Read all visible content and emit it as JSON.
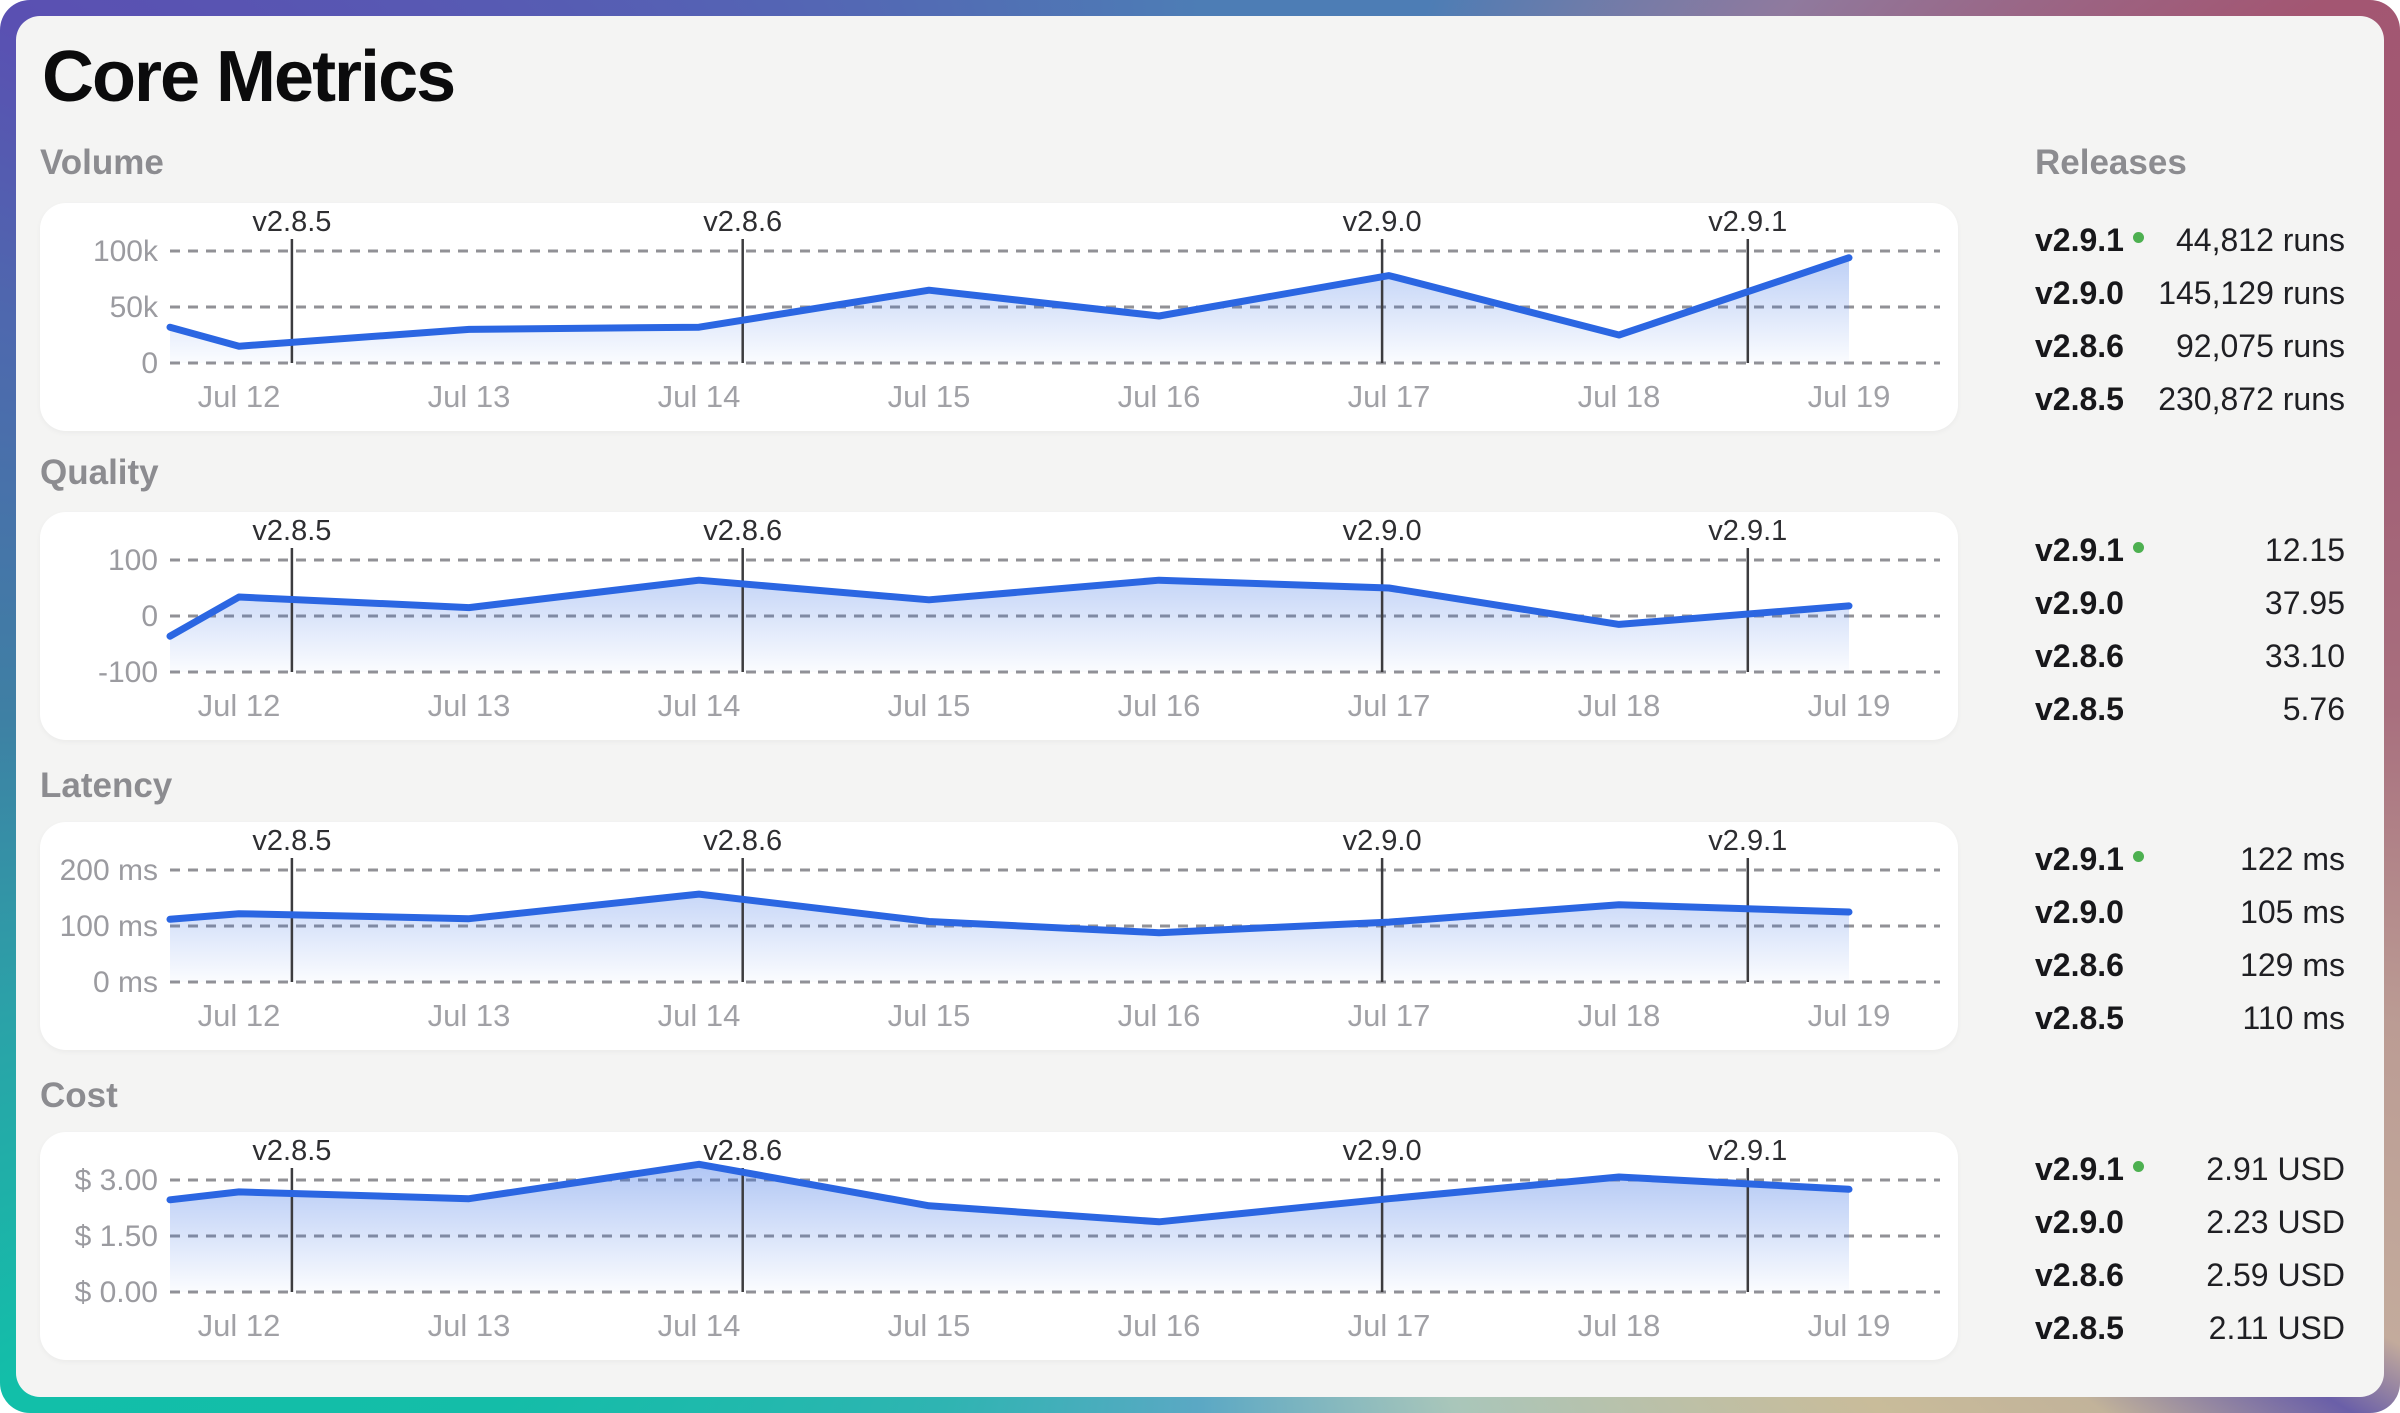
{
  "title": "Core Metrics",
  "releases_panel": {
    "header": "Releases"
  },
  "colors": {
    "line_blue": "#2b66e2",
    "active_dot_green": "#4db050",
    "card_bg": "#f4f4f3",
    "panel_bg": "#ffffff",
    "frame_gradient": [
      "#5a50b2",
      "#4d7db5",
      "#a35672",
      "#bb9c94",
      "#6a5fa8",
      "#c9bc9a",
      "#5ba8c4",
      "#14bda8",
      "#3f7fa4"
    ]
  },
  "sections": [
    {
      "label": "Volume",
      "releases": [
        {
          "version": "v2.9.1",
          "active": true,
          "value": "44,812 runs"
        },
        {
          "version": "v2.9.0",
          "active": false,
          "value": "145,129 runs"
        },
        {
          "version": "v2.8.6",
          "active": false,
          "value": "92,075 runs"
        },
        {
          "version": "v2.8.5",
          "active": false,
          "value": "230,872 runs"
        }
      ]
    },
    {
      "label": "Quality",
      "releases": [
        {
          "version": "v2.9.1",
          "active": true,
          "value": "12.15"
        },
        {
          "version": "v2.9.0",
          "active": false,
          "value": "37.95"
        },
        {
          "version": "v2.8.6",
          "active": false,
          "value": "33.10"
        },
        {
          "version": "v2.8.5",
          "active": false,
          "value": "5.76"
        }
      ]
    },
    {
      "label": "Latency",
      "releases": [
        {
          "version": "v2.9.1",
          "active": true,
          "value": "122 ms"
        },
        {
          "version": "v2.9.0",
          "active": false,
          "value": "105 ms"
        },
        {
          "version": "v2.8.6",
          "active": false,
          "value": "129 ms"
        },
        {
          "version": "v2.8.5",
          "active": false,
          "value": "110 ms"
        }
      ]
    },
    {
      "label": "Cost",
      "releases": [
        {
          "version": "v2.9.1",
          "active": true,
          "value": "2.91 USD"
        },
        {
          "version": "v2.9.0",
          "active": false,
          "value": "2.23 USD"
        },
        {
          "version": "v2.8.6",
          "active": false,
          "value": "2.59 USD"
        },
        {
          "version": "v2.8.5",
          "active": false,
          "value": "2.11 USD"
        }
      ]
    }
  ],
  "chart_data": [
    {
      "type": "area",
      "title": "Volume",
      "x_days": [
        11.7,
        12,
        13,
        14,
        15,
        16,
        17,
        18,
        19
      ],
      "values": [
        32000,
        15000,
        30000,
        32000,
        65000,
        42000,
        78000,
        25000,
        94000
      ],
      "x_tick_days": [
        12,
        13,
        14,
        15,
        16,
        17,
        18,
        19
      ],
      "x_tick_labels": [
        "Jul 12",
        "Jul 13",
        "Jul 14",
        "Jul 15",
        "Jul 16",
        "Jul 17",
        "Jul 18",
        "Jul 19"
      ],
      "y_ticks": [
        {
          "value": 100000,
          "label": "100k"
        },
        {
          "value": 50000,
          "label": "50k"
        },
        {
          "value": 0,
          "label": "0"
        }
      ],
      "ylim": [
        0,
        100000
      ],
      "grid": true,
      "legend": false,
      "markers": [
        {
          "label": "v2.8.5",
          "day": 12.23
        },
        {
          "label": "v2.8.6",
          "day": 14.19
        },
        {
          "label": "v2.9.0",
          "day": 16.97
        },
        {
          "label": "v2.9.1",
          "day": 18.56
        }
      ]
    },
    {
      "type": "area",
      "title": "Quality",
      "x_days": [
        11.7,
        12,
        13,
        14,
        15,
        16,
        17,
        18,
        19
      ],
      "values": [
        -36,
        34,
        15,
        64,
        29,
        64,
        50,
        -15,
        18
      ],
      "x_tick_days": [
        12,
        13,
        14,
        15,
        16,
        17,
        18,
        19
      ],
      "x_tick_labels": [
        "Jul 12",
        "Jul 13",
        "Jul 14",
        "Jul 15",
        "Jul 16",
        "Jul 17",
        "Jul 18",
        "Jul 19"
      ],
      "y_ticks": [
        {
          "value": 100,
          "label": "100"
        },
        {
          "value": 0,
          "label": "0"
        },
        {
          "value": -100,
          "label": "-100"
        }
      ],
      "ylim": [
        -100,
        100
      ],
      "grid": true,
      "legend": false,
      "markers": [
        {
          "label": "v2.8.5",
          "day": 12.23
        },
        {
          "label": "v2.8.6",
          "day": 14.19
        },
        {
          "label": "v2.9.0",
          "day": 16.97
        },
        {
          "label": "v2.9.1",
          "day": 18.56
        }
      ]
    },
    {
      "type": "area",
      "title": "Latency",
      "x_days": [
        11.7,
        12,
        13,
        14,
        15,
        16,
        17,
        18,
        19
      ],
      "values": [
        112,
        122,
        113,
        157,
        108,
        88,
        107,
        138,
        125
      ],
      "x_tick_days": [
        12,
        13,
        14,
        15,
        16,
        17,
        18,
        19
      ],
      "x_tick_labels": [
        "Jul 12",
        "Jul 13",
        "Jul 14",
        "Jul 15",
        "Jul 16",
        "Jul 17",
        "Jul 18",
        "Jul 19"
      ],
      "y_ticks": [
        {
          "value": 200,
          "label": "200 ms"
        },
        {
          "value": 100,
          "label": "100 ms"
        },
        {
          "value": 0,
          "label": "0 ms"
        }
      ],
      "ylim": [
        0,
        200
      ],
      "grid": true,
      "legend": false,
      "markers": [
        {
          "label": "v2.8.5",
          "day": 12.23
        },
        {
          "label": "v2.8.6",
          "day": 14.19
        },
        {
          "label": "v2.9.0",
          "day": 16.97
        },
        {
          "label": "v2.9.1",
          "day": 18.56
        }
      ]
    },
    {
      "type": "area",
      "title": "Cost",
      "x_days": [
        11.7,
        12,
        13,
        14,
        15,
        16,
        17,
        18,
        19
      ],
      "values": [
        2.47,
        2.68,
        2.5,
        3.42,
        2.31,
        1.88,
        2.5,
        3.08,
        2.75
      ],
      "x_tick_days": [
        12,
        13,
        14,
        15,
        16,
        17,
        18,
        19
      ],
      "x_tick_labels": [
        "Jul 12",
        "Jul 13",
        "Jul 14",
        "Jul 15",
        "Jul 16",
        "Jul 17",
        "Jul 18",
        "Jul 19"
      ],
      "y_ticks": [
        {
          "value": 3,
          "label": "$ 3.00"
        },
        {
          "value": 1.5,
          "label": "$ 1.50"
        },
        {
          "value": 0,
          "label": "$ 0.00"
        }
      ],
      "ylim": [
        0,
        3
      ],
      "grid": true,
      "legend": false,
      "markers": [
        {
          "label": "v2.8.5",
          "day": 12.23
        },
        {
          "label": "v2.8.6",
          "day": 14.19
        },
        {
          "label": "v2.9.0",
          "day": 16.97
        },
        {
          "label": "v2.9.1",
          "day": 18.56
        }
      ]
    }
  ]
}
